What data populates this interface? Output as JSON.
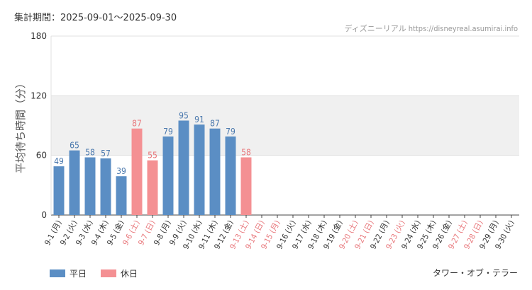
{
  "header": {
    "period": "集計期間：2025-09-01～2025-09-30",
    "credit": "ディズニーリアル https://disneyreal.asumirai.info"
  },
  "legend": {
    "weekday_label": "平日",
    "holiday_label": "休日"
  },
  "attraction": "タワー・オブ・テラー",
  "colors": {
    "weekday": "#5b8ec4",
    "holiday": "#f49093",
    "weekday_label": "#4a78ad",
    "holiday_label": "#e8767a",
    "band": "#f0f0f0",
    "grid": "#e0e0e0",
    "axis": "#444444"
  },
  "chart_data": {
    "type": "bar",
    "title": "",
    "ylabel": "平均待ち時間（分）",
    "xlabel": "",
    "ylim": [
      0,
      180
    ],
    "yticks": [
      0,
      60,
      120,
      180
    ],
    "categories": [
      "9-1 (月)",
      "9-2 (火)",
      "9-3 (水)",
      "9-4 (木)",
      "9-5 (金)",
      "9-6 (土)",
      "9-7 (日)",
      "9-8 (月)",
      "9-9 (火)",
      "9-10 (水)",
      "9-11 (木)",
      "9-12 (金)",
      "9-13 (土)",
      "9-14 (日)",
      "9-15 (月)",
      "9-16 (火)",
      "9-17 (水)",
      "9-18 (木)",
      "9-19 (金)",
      "9-20 (土)",
      "9-21 (日)",
      "9-22 (月)",
      "9-23 (火)",
      "9-24 (水)",
      "9-25 (木)",
      "9-26 (金)",
      "9-27 (土)",
      "9-28 (日)",
      "9-29 (月)",
      "9-30 (火)"
    ],
    "values": [
      49,
      65,
      58,
      57,
      39,
      87,
      55,
      79,
      95,
      91,
      87,
      79,
      58,
      null,
      null,
      null,
      null,
      null,
      null,
      null,
      null,
      null,
      null,
      null,
      null,
      null,
      null,
      null,
      null,
      null
    ],
    "holiday": [
      false,
      false,
      false,
      false,
      false,
      true,
      true,
      false,
      false,
      false,
      false,
      false,
      true,
      true,
      true,
      false,
      false,
      false,
      false,
      true,
      true,
      false,
      true,
      false,
      false,
      false,
      true,
      true,
      false,
      false
    ],
    "band_range": [
      60,
      120
    ]
  }
}
